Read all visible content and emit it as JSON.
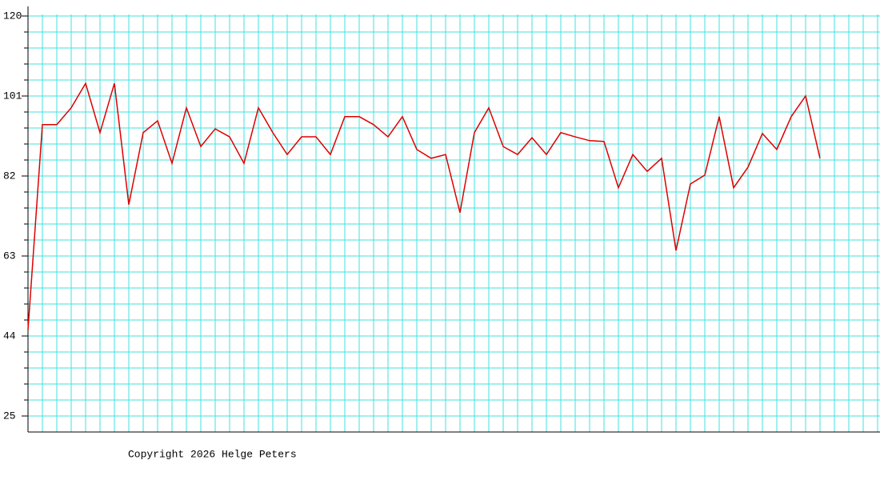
{
  "chart_data": {
    "type": "line",
    "categories": [
      null,
      null,
      null,
      null,
      null,
      null,
      null,
      null,
      null,
      null,
      null,
      null,
      null,
      null,
      null,
      null,
      null,
      null,
      null,
      null,
      null,
      null,
      null,
      null,
      null,
      null,
      null,
      null,
      null,
      null,
      null,
      null,
      null,
      null,
      null,
      null,
      null,
      null,
      null,
      null,
      null,
      null,
      null,
      null,
      null,
      null,
      null,
      null,
      null,
      null,
      null,
      null,
      null,
      null,
      null,
      null
    ],
    "series": [
      {
        "color": "#e00000",
        "values": [
          45.5,
          94.2,
          94.2,
          98.2,
          104.0,
          92.3,
          104.0,
          75.2,
          92.3,
          95.1,
          85.0,
          98.2,
          89.0,
          93.2,
          91.3,
          85.0,
          98.2,
          92.3,
          87.1,
          91.3,
          91.3,
          87.1,
          96.1,
          96.1,
          94.2,
          91.3,
          96.1,
          88.3,
          86.2,
          87.1,
          73.3,
          92.3,
          98.2,
          89.0,
          87.1,
          91.1,
          87.1,
          92.3,
          91.3,
          90.4,
          90.2,
          79.2,
          87.1,
          83.1,
          86.2,
          64.3,
          80.1,
          82.2,
          96.1,
          79.2,
          84.1,
          92.1,
          88.3,
          96.1,
          101.0,
          86.2
        ]
      }
    ],
    "ylim": [
      21.2,
      122.28
    ],
    "yticks": [
      25,
      44,
      63,
      82,
      101,
      120
    ],
    "grid": true,
    "grid_color": "#40e0e0",
    "footer": "Copyright 2026 Helge Peters"
  }
}
